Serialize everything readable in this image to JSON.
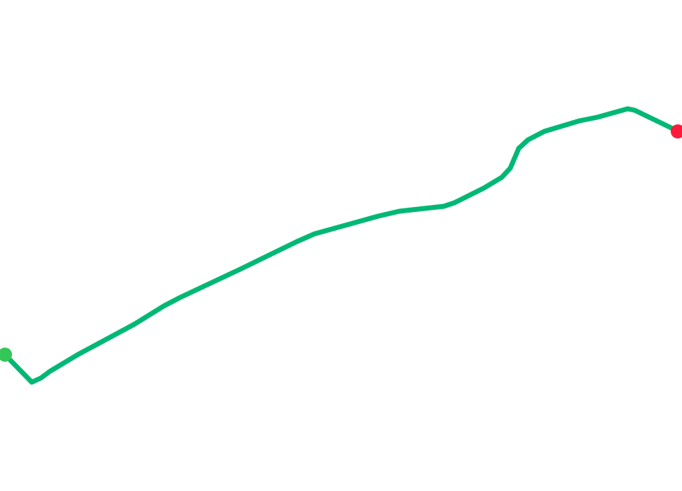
{
  "route": {
    "line_color": "#00b875",
    "start_marker_color": "#34c659",
    "end_marker_color": "#ff1a3c"
  }
}
